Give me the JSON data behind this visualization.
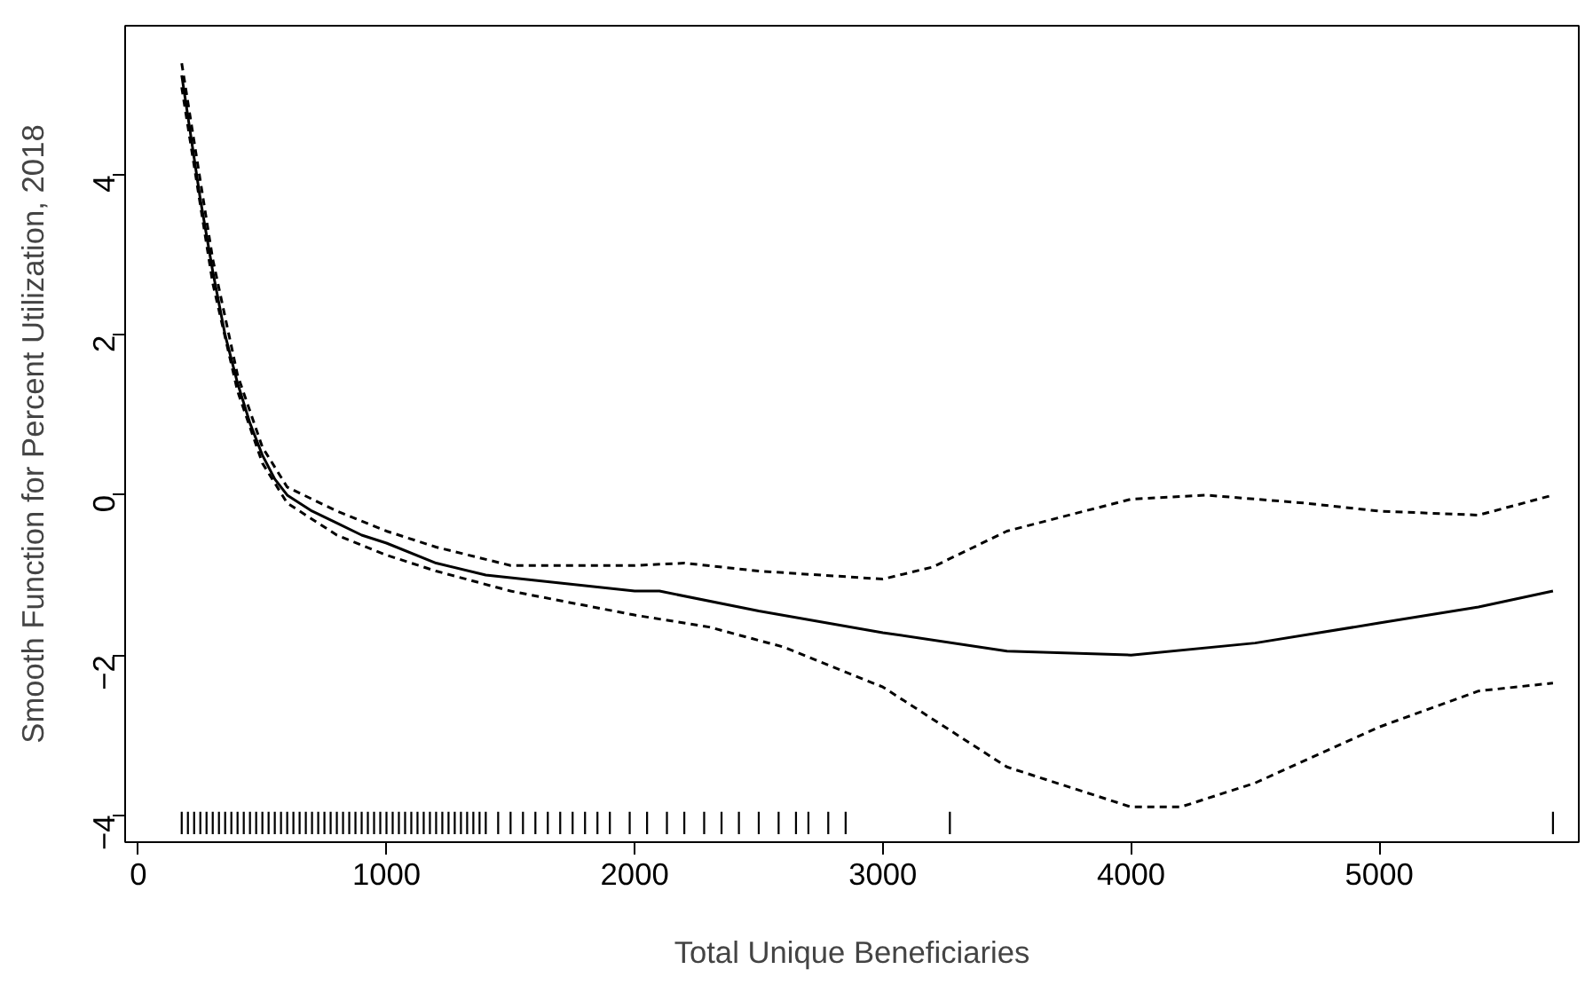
{
  "chart_data": {
    "type": "line",
    "xlabel": "Total Unique Beneficiaries",
    "ylabel": "Smooth Function for Percent Utilization, 2018",
    "xlim": [
      -53,
      5804
    ],
    "ylim": [
      -4.34,
      5.87
    ],
    "xticks": [
      0,
      1000,
      2000,
      3000,
      4000,
      5000
    ],
    "yticks": [
      -4,
      -2,
      0,
      2,
      4
    ],
    "grid": false,
    "series": [
      {
        "color": "#000000",
        "line_style": "solid",
        "x": [
          175,
          250,
          300,
          350,
          400,
          450,
          500,
          550,
          600,
          700,
          800,
          900,
          1000,
          1200,
          1400,
          1700,
          2000,
          2100,
          2500,
          3000,
          3500,
          4000,
          4500,
          5000,
          5400,
          5700
        ],
        "values": [
          5.25,
          3.7,
          2.8,
          2.0,
          1.4,
          0.9,
          0.5,
          0.2,
          0.0,
          -0.2,
          -0.35,
          -0.5,
          -0.6,
          -0.85,
          -1.0,
          -1.1,
          -1.2,
          -1.2,
          -1.45,
          -1.72,
          -1.95,
          -2.0,
          -1.85,
          -1.6,
          -1.4,
          -1.2
        ]
      },
      {
        "type": "line",
        "color": "#000000",
        "line_style": "dashed",
        "x": [
          175,
          300,
          400,
          500,
          600,
          800,
          1000,
          1200,
          1500,
          2000,
          2200,
          2500,
          3000,
          3200,
          3500,
          4000,
          4300,
          4700,
          5000,
          5400,
          5700
        ],
        "values": [
          5.4,
          2.95,
          1.5,
          0.6,
          0.1,
          -0.2,
          -0.45,
          -0.65,
          -0.88,
          -0.88,
          -0.85,
          -0.95,
          -1.05,
          -0.9,
          -0.45,
          -0.05,
          0.0,
          -0.1,
          -0.2,
          -0.25,
          0.0
        ]
      },
      {
        "type": "line",
        "color": "#000000",
        "line_style": "dashed",
        "x": [
          175,
          300,
          400,
          500,
          600,
          800,
          1000,
          1200,
          1500,
          2000,
          2300,
          2600,
          3000,
          3500,
          4000,
          4200,
          4500,
          5000,
          5400,
          5700
        ],
        "values": [
          5.1,
          2.65,
          1.3,
          0.4,
          -0.1,
          -0.5,
          -0.75,
          -0.95,
          -1.2,
          -1.5,
          -1.65,
          -1.9,
          -2.4,
          -3.4,
          -3.9,
          -3.9,
          -3.6,
          -2.9,
          -2.45,
          -2.35
        ]
      },
      {
        "type": "bar",
        "color": "#000000",
        "base": [
          -4.24,
          -4.24,
          -4.24,
          -4.24,
          -4.24,
          -4.24,
          -4.24,
          -4.24,
          -4.24,
          -4.24,
          -4.24,
          -4.24,
          -4.24,
          -4.24,
          -4.24,
          -4.24,
          -4.24,
          -4.24,
          -4.24,
          -4.24,
          -4.24,
          -4.24,
          -4.24,
          -4.24,
          -4.24,
          -4.24,
          -4.24,
          -4.24,
          -4.24,
          -4.24,
          -4.24,
          -4.24,
          -4.24,
          -4.24,
          -4.24,
          -4.24,
          -4.24,
          -4.24,
          -4.24,
          -4.24,
          -4.24,
          -4.24,
          -4.24,
          -4.24,
          -4.24,
          -4.24,
          -4.24,
          -4.24,
          -4.24,
          -4.24,
          -4.24,
          -4.24,
          -4.24,
          -4.24,
          -4.24,
          -4.24,
          -4.24,
          -4.24,
          -4.24,
          -4.24,
          -4.24,
          -4.24,
          -4.24,
          -4.24,
          -4.24,
          -4.24,
          -4.24,
          -4.24,
          -4.24,
          -4.24,
          -4.24,
          -4.24,
          -4.24,
          -4.24,
          -4.24
        ],
        "x": [
          175,
          200,
          225,
          250,
          275,
          300,
          325,
          350,
          375,
          400,
          425,
          450,
          475,
          500,
          525,
          550,
          575,
          600,
          625,
          650,
          675,
          700,
          725,
          750,
          775,
          800,
          825,
          850,
          875,
          900,
          925,
          950,
          975,
          1000,
          1025,
          1050,
          1075,
          1100,
          1125,
          1150,
          1175,
          1200,
          1225,
          1250,
          1275,
          1300,
          1325,
          1350,
          1375,
          1400,
          1450,
          1500,
          1550,
          1600,
          1650,
          1700,
          1750,
          1800,
          1850,
          1900,
          1980,
          2050,
          2130,
          2200,
          2280,
          2350,
          2420,
          2500,
          2580,
          2650,
          2700,
          2780,
          2850,
          3270,
          5700
        ],
        "values": [
          0.28,
          0.28,
          0.28,
          0.28,
          0.28,
          0.28,
          0.28,
          0.28,
          0.28,
          0.28,
          0.28,
          0.28,
          0.28,
          0.28,
          0.28,
          0.28,
          0.28,
          0.28,
          0.28,
          0.28,
          0.28,
          0.28,
          0.28,
          0.28,
          0.28,
          0.28,
          0.28,
          0.28,
          0.28,
          0.28,
          0.28,
          0.28,
          0.28,
          0.28,
          0.28,
          0.28,
          0.28,
          0.28,
          0.28,
          0.28,
          0.28,
          0.28,
          0.28,
          0.28,
          0.28,
          0.28,
          0.28,
          0.28,
          0.28,
          0.28,
          0.28,
          0.28,
          0.28,
          0.28,
          0.28,
          0.28,
          0.28,
          0.28,
          0.28,
          0.28,
          0.28,
          0.28,
          0.28,
          0.28,
          0.28,
          0.28,
          0.28,
          0.28,
          0.28,
          0.28,
          0.28,
          0.28,
          0.28,
          0.28,
          0.28
        ]
      }
    ]
  }
}
